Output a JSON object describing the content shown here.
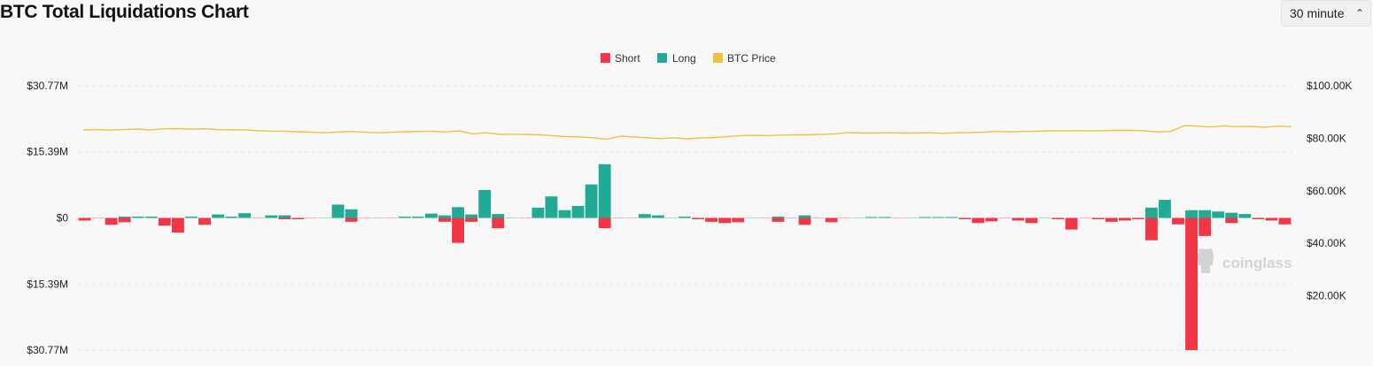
{
  "header": {
    "title": "BTC Total Liquidations Chart",
    "interval_label": "30 minute"
  },
  "watermark": {
    "text": "coinglass"
  },
  "colors": {
    "short": "#f23645",
    "long": "#22ab94",
    "price": "#f0c043"
  },
  "chart_data": {
    "type": "bar",
    "title": "BTC Total Liquidations Chart",
    "legend": {
      "position": "top-center",
      "items": [
        "Short",
        "Long",
        "BTC Price"
      ]
    },
    "grid": true,
    "left_axis": {
      "range": [
        -30.77,
        30.77
      ],
      "unit": "millions USD",
      "ticks": [
        30.77,
        15.39,
        0,
        -15.39,
        -30.77
      ],
      "tick_labels": [
        "$30.77M",
        "$15.39M",
        "$0",
        "$15.39M",
        "$30.77M"
      ]
    },
    "right_axis": {
      "range": [
        0,
        100000
      ],
      "ticks": [
        100000,
        80000,
        60000,
        40000,
        20000
      ],
      "tick_labels": [
        "$100.00K",
        "$80.00K",
        "$60.00K",
        "$40.00K",
        "$20.00K"
      ]
    },
    "series": [
      {
        "name": "Short",
        "values": [
          -0.6,
          0,
          -1.6,
          -1.0,
          0,
          0,
          -1.8,
          -3.4,
          0,
          -1.6,
          0,
          0,
          0,
          0,
          0,
          -0.3,
          -0.3,
          0,
          0,
          0,
          -0.9,
          0,
          0,
          0,
          0,
          0,
          0,
          -0.9,
          -5.8,
          -0.9,
          0,
          -2.4,
          0,
          0,
          0,
          0,
          0,
          0,
          0,
          -2.4,
          0,
          0,
          0,
          0,
          0,
          0,
          -0.3,
          -0.9,
          -1.2,
          -1.0,
          0,
          0,
          -0.9,
          0,
          -1.6,
          0,
          -1.0,
          0,
          0,
          0,
          0,
          0,
          0,
          0,
          0,
          0,
          -0.3,
          -1.2,
          -0.8,
          0,
          -0.6,
          -1.2,
          0,
          -0.3,
          -2.7,
          0,
          -0.3,
          -0.9,
          -0.6,
          -0.3,
          -5.2,
          0,
          -1.5,
          -30.77,
          -4.2,
          0,
          -1.2,
          0,
          -0.3,
          -0.6,
          -1.5
        ],
        "values_note": ""
      },
      {
        "name": "Long",
        "values": [
          0,
          0,
          0,
          0.3,
          0.3,
          0.3,
          0,
          0,
          0.3,
          0,
          0.8,
          0.3,
          1.1,
          0,
          0.6,
          0.6,
          0,
          0,
          0,
          3.1,
          2.0,
          0,
          0,
          0,
          0.3,
          0.3,
          1.0,
          0.6,
          2.5,
          0.8,
          6.5,
          0.9,
          0,
          0,
          2.4,
          5.0,
          1.8,
          2.8,
          7.8,
          12.5,
          0,
          0,
          0.9,
          0.6,
          0,
          0.3,
          0,
          0,
          0,
          0,
          0,
          0,
          0.3,
          0,
          0.6,
          0,
          0,
          0,
          0,
          0.2,
          0.2,
          0,
          0,
          0.2,
          0.2,
          0.2,
          0,
          0,
          0,
          0,
          0,
          0,
          0,
          0,
          0,
          0,
          0,
          0,
          0,
          0,
          2.4,
          4.2,
          0,
          1.8,
          1.8,
          1.5,
          1.2,
          0.9,
          0,
          0,
          0
        ]
      },
      {
        "name": "BTC Price",
        "axis": "right",
        "values": [
          83100,
          83300,
          83100,
          83300,
          83500,
          83200,
          83600,
          83700,
          83500,
          83600,
          83300,
          83200,
          83200,
          82900,
          82700,
          82700,
          82500,
          82300,
          82100,
          82400,
          82600,
          82300,
          82100,
          82300,
          82500,
          82600,
          82700,
          82400,
          82800,
          81700,
          82100,
          81500,
          81500,
          81400,
          81300,
          81000,
          80600,
          80500,
          80200,
          79600,
          80800,
          80500,
          80200,
          79900,
          80200,
          79800,
          80100,
          80300,
          80600,
          81000,
          81100,
          81000,
          81200,
          81300,
          81300,
          81500,
          81700,
          82200,
          82000,
          82000,
          82100,
          82000,
          82000,
          82100,
          81900,
          82100,
          82200,
          82300,
          82600,
          82500,
          82600,
          82700,
          82800,
          82800,
          82900,
          82800,
          82900,
          83000,
          83000,
          82900,
          82400,
          82600,
          84800,
          84600,
          84300,
          84700,
          84400,
          84500,
          84200,
          84600,
          84400
        ]
      }
    ]
  }
}
